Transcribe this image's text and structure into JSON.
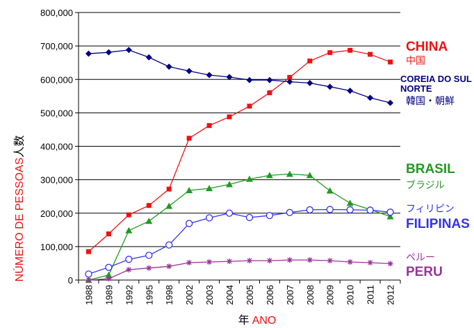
{
  "chart_data": {
    "type": "line",
    "x_label_prefix": "年",
    "x_label": "ANO",
    "y_label": "NÚMERO DE PESSOAS",
    "y_label_suffix": "人数",
    "categories": [
      "1988",
      "1989",
      "1992",
      "1995",
      "1998",
      "2002",
      "2003",
      "2004",
      "2005",
      "2006",
      "2007",
      "2008",
      "2009",
      "2010",
      "2011",
      "2012"
    ],
    "ylim": [
      0,
      800000
    ],
    "y_ticks": [
      0,
      100000,
      200000,
      300000,
      400000,
      500000,
      600000,
      700000,
      800000
    ],
    "y_tick_labels": [
      "0",
      "100,000",
      "200,000",
      "300,000",
      "400,000",
      "500,000",
      "600,000",
      "700,000",
      "800,000"
    ],
    "gridlines": true,
    "series": [
      {
        "key": "china",
        "name": "CHINA",
        "name_native": "中国",
        "color": "#ee1111",
        "marker": "square",
        "values": [
          85000,
          138000,
          195000,
          223000,
          272000,
          424000,
          462000,
          488000,
          520000,
          560000,
          606000,
          655000,
          680000,
          687000,
          675000,
          652000
        ]
      },
      {
        "key": "korea",
        "name": "COREIA DO SUL\nNORTE",
        "name_native": "韓国・朝鮮",
        "color": "#000080",
        "marker": "diamond",
        "values": [
          677000,
          681000,
          688000,
          666000,
          638000,
          625000,
          613000,
          607000,
          598000,
          598000,
          593000,
          589000,
          578000,
          566000,
          545000,
          530000
        ]
      },
      {
        "key": "brazil",
        "name": "BRASIL",
        "name_native": "ブラジル",
        "color": "#229922",
        "marker": "triangle",
        "values": [
          0,
          15000,
          148000,
          176000,
          221000,
          268000,
          274000,
          286000,
          302000,
          313000,
          317000,
          313000,
          267000,
          230000,
          211000,
          190000
        ]
      },
      {
        "key": "philippines",
        "name": "FILIPINAS",
        "name_native": "フィリピン",
        "color": "#3333ee",
        "marker": "circle",
        "values": [
          18000,
          38000,
          62000,
          74000,
          105000,
          169000,
          186000,
          200000,
          187000,
          193000,
          202000,
          210000,
          211000,
          210000,
          209000,
          203000
        ]
      },
      {
        "key": "peru",
        "name": "PERU",
        "name_native": "ペルー",
        "color": "#993399",
        "marker": "star",
        "values": [
          0,
          4000,
          31000,
          36000,
          41000,
          52000,
          54000,
          56000,
          58000,
          58000,
          60000,
          60000,
          58000,
          54000,
          52000,
          49000
        ]
      }
    ]
  }
}
